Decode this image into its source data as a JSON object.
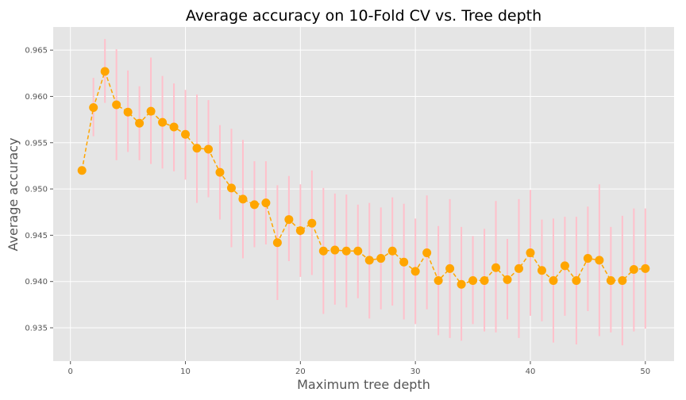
{
  "chart_data": {
    "type": "line",
    "title": "Average accuracy on 10-Fold CV vs. Tree depth",
    "xlabel": "Maximum tree depth",
    "ylabel": "Average accuracy",
    "xlim": [
      -1.5,
      52.5
    ],
    "ylim": [
      0.9314,
      0.9675
    ],
    "xticks": [
      0,
      10,
      20,
      30,
      40,
      50
    ],
    "xtick_labels": [
      "0",
      "10",
      "20",
      "30",
      "40",
      "50"
    ],
    "yticks": [
      0.935,
      0.94,
      0.945,
      0.95,
      0.955,
      0.96,
      0.965
    ],
    "ytick_labels": [
      "0.935",
      "0.940",
      "0.945",
      "0.950",
      "0.955",
      "0.960",
      "0.965"
    ],
    "grid": true,
    "colors": {
      "background": "#e5e5e5",
      "grid": "#ffffff",
      "line": "#ffa500",
      "marker": "#ffa500",
      "error_bar": "#ffc0cb"
    },
    "series": [
      {
        "x": [
          1,
          2,
          3,
          4,
          5,
          6,
          7,
          8,
          9,
          10,
          11,
          12,
          13,
          14,
          15,
          16,
          17,
          18,
          19,
          20,
          21,
          22,
          23,
          24,
          25,
          26,
          27,
          28,
          29,
          30,
          31,
          32,
          33,
          34,
          35,
          36,
          37,
          38,
          39,
          40,
          41,
          42,
          43,
          44,
          45,
          46,
          47,
          48,
          49,
          50
        ],
        "values": [
          0.952,
          0.9588,
          0.9627,
          0.9591,
          0.9583,
          0.9571,
          0.9584,
          0.9572,
          0.9567,
          0.9559,
          0.9544,
          0.9543,
          0.9518,
          0.9501,
          0.9489,
          0.9483,
          0.9485,
          0.9442,
          0.9467,
          0.9455,
          0.9463,
          0.9433,
          0.9434,
          0.9433,
          0.9433,
          0.9423,
          0.9425,
          0.9433,
          0.9421,
          0.9411,
          0.9431,
          0.9401,
          0.9414,
          0.9397,
          0.9401,
          0.9401,
          0.9415,
          0.9402,
          0.9414,
          0.9431,
          0.9412,
          0.9401,
          0.9417,
          0.9401,
          0.9425,
          0.9423,
          0.9401,
          0.9401,
          0.9413,
          0.9414
        ],
        "error_low": [
          null,
          0.9557,
          0.9593,
          0.9531,
          0.954,
          0.9531,
          0.9527,
          0.9522,
          0.9519,
          0.951,
          0.9485,
          0.9491,
          0.9467,
          0.9437,
          0.9425,
          0.9437,
          0.944,
          0.938,
          0.9422,
          0.9405,
          0.9407,
          0.9365,
          0.9375,
          0.9372,
          0.9382,
          0.936,
          0.937,
          0.9374,
          0.9359,
          0.9354,
          0.937,
          0.9342,
          0.9339,
          0.9336,
          0.9354,
          0.9346,
          0.9345,
          0.9359,
          0.9339,
          0.9363,
          0.9357,
          0.9334,
          0.9363,
          0.9332,
          0.9368,
          0.9341,
          0.9345,
          0.9331,
          0.9346,
          0.9349
        ],
        "error_high": [
          null,
          0.962,
          0.9662,
          0.9651,
          0.9628,
          0.9611,
          0.9642,
          0.9622,
          0.9614,
          0.9607,
          0.9602,
          0.9596,
          0.9569,
          0.9565,
          0.9553,
          0.953,
          0.953,
          0.9504,
          0.9514,
          0.9505,
          0.952,
          0.9501,
          0.9495,
          0.9494,
          0.9483,
          0.9485,
          0.948,
          0.9491,
          0.9484,
          0.9468,
          0.9493,
          0.946,
          0.9489,
          0.9459,
          0.9449,
          0.9457,
          0.9487,
          0.9446,
          0.9489,
          0.9499,
          0.9467,
          0.9468,
          0.947,
          0.947,
          0.9481,
          0.9505,
          0.9459,
          0.9471,
          0.9479,
          0.9479
        ]
      }
    ]
  }
}
